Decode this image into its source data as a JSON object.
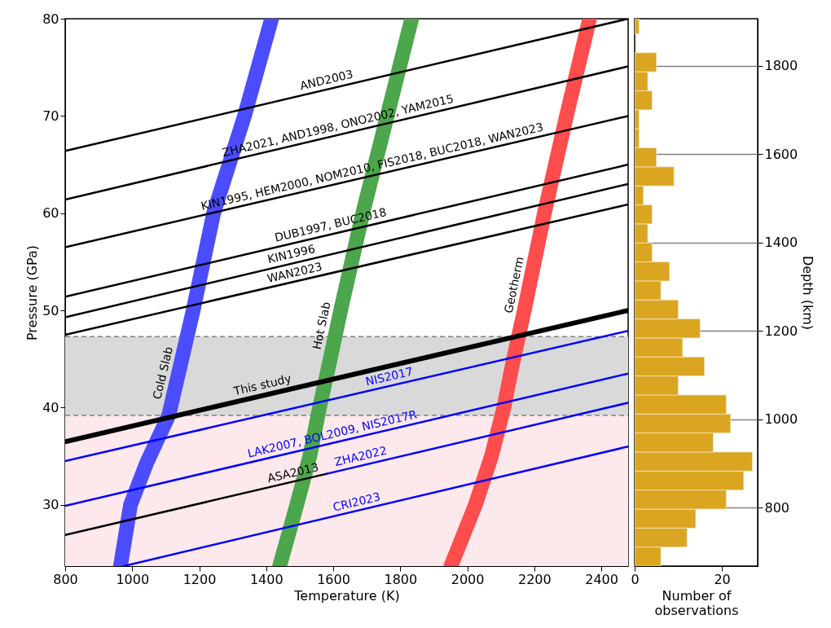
{
  "chart_data": [
    {
      "type": "line",
      "xlabel": "Temperature (K)",
      "ylabel": "Pressure (GPa)",
      "xlim": [
        800,
        2480
      ],
      "ylim": [
        23.7,
        80
      ],
      "xticks": [
        800,
        1000,
        1200,
        1400,
        1600,
        1800,
        2000,
        2200,
        2400
      ],
      "yticks": [
        30,
        40,
        50,
        60,
        70,
        80
      ],
      "bands": [
        {
          "axis": "y",
          "from": 39.2,
          "to": 47.3,
          "color": "#d9d9d9"
        },
        {
          "axis": "y",
          "from": 23.7,
          "to": 39.2,
          "color": "#fde8ec"
        }
      ],
      "ref_lines": [
        {
          "axis": "y",
          "value": 47.3,
          "color": "#808080",
          "line_style": "dashed"
        },
        {
          "axis": "y",
          "value": 39.2,
          "color": "#808080",
          "line_style": "dashed"
        }
      ],
      "series": [
        {
          "color": "#4c4cff",
          "x": [
            965,
            995,
            1043,
            1109,
            1182,
            1243,
            1335,
            1416
          ],
          "values": [
            23.7,
            30,
            34.3,
            39.2,
            50,
            60,
            70,
            80
          ]
        },
        {
          "color": "#4ca64c",
          "x": [
            1440,
            1491,
            1530,
            1559,
            1591,
            1622,
            1688,
            1761,
            1834
          ],
          "values": [
            23.7,
            30,
            35,
            40,
            45,
            50,
            60,
            70,
            80
          ]
        },
        {
          "color": "#ff4c4c",
          "x": [
            1951,
            2024,
            2072,
            2109,
            2138,
            2170,
            2230,
            2296,
            2365
          ],
          "values": [
            23.7,
            30,
            35,
            40,
            45,
            50,
            60,
            70,
            80
          ]
        },
        {
          "color": "#000000",
          "x": [
            800,
            2480
          ],
          "values": [
            36.5,
            50.0
          ]
        },
        {
          "color": "#000000",
          "x": [
            800,
            2480
          ],
          "values": [
            66.4,
            80.0
          ]
        },
        {
          "color": "#000000",
          "x": [
            800,
            2480
          ],
          "values": [
            61.4,
            75.1
          ]
        },
        {
          "color": "#000000",
          "x": [
            800,
            2480
          ],
          "values": [
            56.5,
            70.0
          ]
        },
        {
          "color": "#000000",
          "x": [
            800,
            2480
          ],
          "values": [
            51.4,
            65.0
          ]
        },
        {
          "color": "#000000",
          "x": [
            800,
            2480
          ],
          "values": [
            49.3,
            63.0
          ]
        },
        {
          "color": "#000000",
          "x": [
            800,
            2480
          ],
          "values": [
            47.5,
            60.9
          ]
        },
        {
          "color": "#0000ff",
          "x": [
            800,
            2480
          ],
          "values": [
            34.5,
            47.9
          ]
        },
        {
          "color": "#0000ff",
          "x": [
            800,
            2480
          ],
          "values": [
            29.9,
            43.5
          ]
        },
        {
          "color": "#000000",
          "x": [
            800,
            1581
          ],
          "values": [
            26.9,
            33.2
          ]
        },
        {
          "color": "#0000ff",
          "x": [
            1581,
            2480
          ],
          "values": [
            33.2,
            40.5
          ]
        },
        {
          "color": "#0000ff",
          "x": [
            975,
            2480
          ],
          "values": [
            23.7,
            36.0
          ]
        }
      ],
      "annotations": [
        {
          "text": "AND2003",
          "x": 1586,
          "y": 72.8
        },
        {
          "text": "ZHA2021, AND1998, ONO2002, YAM2015",
          "x": 1620,
          "y": 68.1
        },
        {
          "text": "KIN1995, HEM2000, NOM2010, FIS2018, BUC2018, WAN2023",
          "x": 1722,
          "y": 63.9
        },
        {
          "text": "DUB1997, BUC2018",
          "x": 1598,
          "y": 57.9
        },
        {
          "text": "KIN1996",
          "x": 1481,
          "y": 54.9
        },
        {
          "text": "WAN2023",
          "x": 1491,
          "y": 53.0
        },
        {
          "text": "Geotherm",
          "x": 2184,
          "y": 52.3
        },
        {
          "text": "Hot Slab",
          "x": 1610,
          "y": 48.1
        },
        {
          "text": "Cold Slab",
          "x": 1136,
          "y": 43.2
        },
        {
          "text": "This study",
          "x": 1396,
          "y": 41.3
        },
        {
          "text": "NIS2017",
          "x": 1773,
          "y": 42.3
        },
        {
          "text": "LAK2007, BOL2009, NIS2017R",
          "x": 1603,
          "y": 36.4
        },
        {
          "text": "ASA2013",
          "x": 1486,
          "y": 32.4
        },
        {
          "text": "ZHA2022",
          "x": 1688,
          "y": 34.1
        },
        {
          "text": "CRI2023",
          "x": 1676,
          "y": 29.4
        }
      ]
    },
    {
      "type": "histogram",
      "orientation": "horizontal",
      "color": "#daa520",
      "xlabel": "Number of\nobservations",
      "ylabel": "Depth (km)",
      "xlim": [
        0,
        28.2
      ],
      "xticks": [
        0,
        20
      ],
      "ylim": [
        668,
        1906
      ],
      "yticks": [
        800,
        1000,
        1200,
        1400,
        1600,
        1800
      ],
      "grid": "y",
      "bins": [
        668,
        711,
        754,
        797,
        840,
        883,
        926,
        969,
        1012,
        1055,
        1098,
        1141,
        1184,
        1227,
        1270,
        1313,
        1356,
        1399,
        1442,
        1485,
        1528,
        1571,
        1614,
        1657,
        1700,
        1743,
        1786,
        1829,
        1872,
        1906
      ],
      "values": [
        6,
        12,
        14,
        21,
        25,
        27,
        18,
        22,
        21,
        10,
        16,
        11,
        15,
        10,
        6,
        8,
        4,
        3,
        4,
        2,
        9,
        5,
        1,
        1,
        4,
        3,
        5,
        0,
        1
      ]
    }
  ]
}
